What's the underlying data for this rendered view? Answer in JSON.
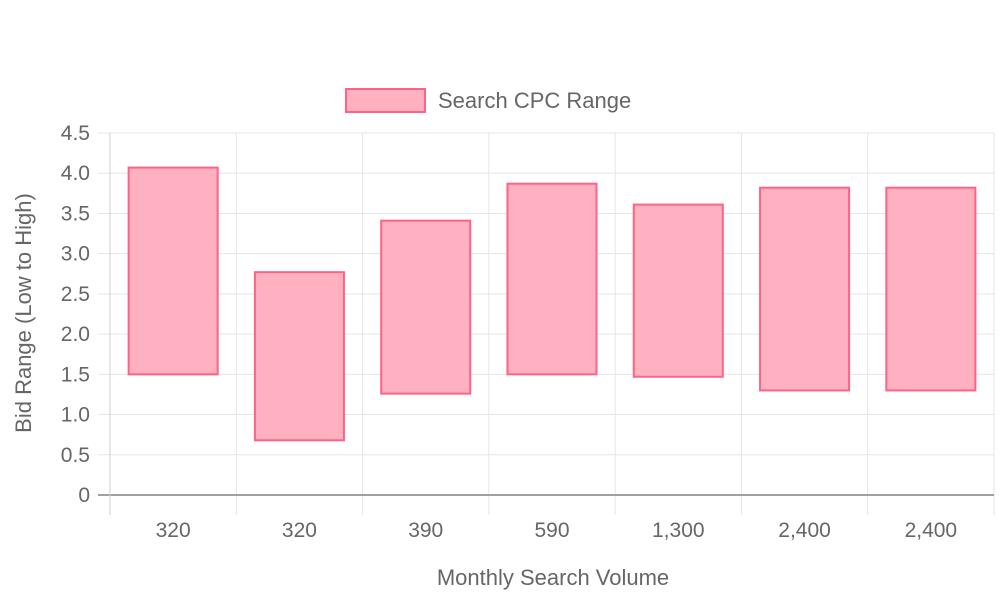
{
  "chart_data": {
    "type": "bar",
    "subtype": "floating-range",
    "xlabel": "Monthly Search Volume",
    "ylabel": "Bid Range (Low to High)",
    "categories": [
      "320",
      "320",
      "390",
      "590",
      "1,300",
      "2,400",
      "2,400"
    ],
    "series": [
      {
        "name": "Search CPC Range",
        "ranges": [
          [
            1.5,
            4.07
          ],
          [
            0.68,
            2.77
          ],
          [
            1.26,
            3.41
          ],
          [
            1.5,
            3.87
          ],
          [
            1.47,
            3.61
          ],
          [
            1.3,
            3.82
          ],
          [
            1.3,
            3.82
          ]
        ],
        "fill_color": "#ffb1c1",
        "border_color": "#ff6384"
      }
    ],
    "ylim": [
      0,
      4.5
    ],
    "yticks": [
      "4.5",
      "4.0",
      "3.5",
      "3.0",
      "2.5",
      "2.0",
      "1.5",
      "1.0",
      "0.5",
      "0"
    ],
    "ytick_values": [
      4.5,
      4.0,
      3.5,
      3.0,
      2.5,
      2.0,
      1.5,
      1.0,
      0.5,
      0
    ],
    "grid": true,
    "legend_position": "top"
  }
}
